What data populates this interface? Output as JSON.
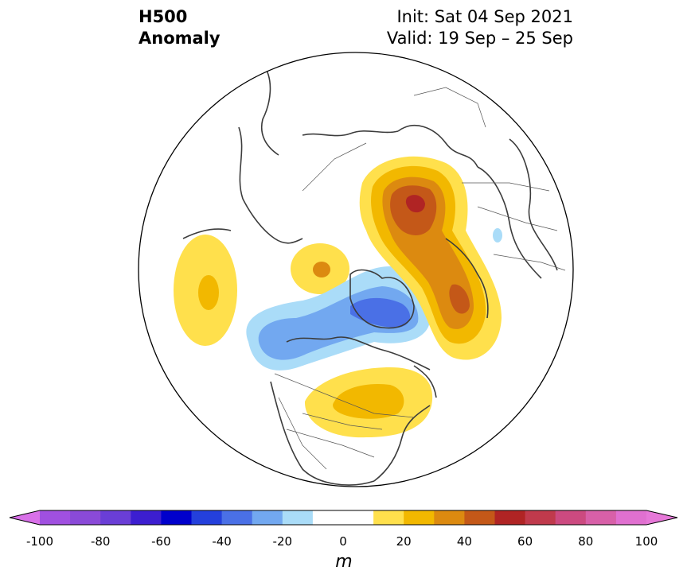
{
  "header": {
    "title_line1": "H500",
    "title_line2": "Anomaly",
    "init": "Init: Sat 04 Sep 2021",
    "valid": "Valid: 19 Sep – 25 Sep"
  },
  "colorbar": {
    "unit": "m",
    "tick_labels": [
      "-100",
      "-80",
      "-60",
      "-40",
      "-20",
      "0",
      "20",
      "40",
      "60",
      "80",
      "100"
    ],
    "bins": [
      {
        "from": -100,
        "to": -90,
        "color": "#a050e0"
      },
      {
        "from": -90,
        "to": -80,
        "color": "#8a4ad8"
      },
      {
        "from": -80,
        "to": -70,
        "color": "#6a3ed6"
      },
      {
        "from": -70,
        "to": -60,
        "color": "#3c1ed0"
      },
      {
        "from": -60,
        "to": -50,
        "color": "#0000cc"
      },
      {
        "from": -50,
        "to": -40,
        "color": "#2440dc"
      },
      {
        "from": -40,
        "to": -30,
        "color": "#4a70e6"
      },
      {
        "from": -30,
        "to": -20,
        "color": "#72a8f0"
      },
      {
        "from": -20,
        "to": -10,
        "color": "#aadcf8"
      },
      {
        "from": -10,
        "to": 10,
        "color": "#ffffff"
      },
      {
        "from": 10,
        "to": 20,
        "color": "#ffe04c"
      },
      {
        "from": 20,
        "to": 30,
        "color": "#f2b800"
      },
      {
        "from": 30,
        "to": 40,
        "color": "#dc8a10"
      },
      {
        "from": 40,
        "to": 50,
        "color": "#c45818"
      },
      {
        "from": 50,
        "to": 60,
        "color": "#b02424"
      },
      {
        "from": 60,
        "to": 70,
        "color": "#c03a4c"
      },
      {
        "from": 70,
        "to": 80,
        "color": "#cc4a80"
      },
      {
        "from": 80,
        "to": 90,
        "color": "#d860a8"
      },
      {
        "from": 90,
        "to": 100,
        "color": "#e070d0"
      }
    ],
    "extend_low_color": "#d870e8",
    "extend_high_color": "#e678d8"
  }
}
